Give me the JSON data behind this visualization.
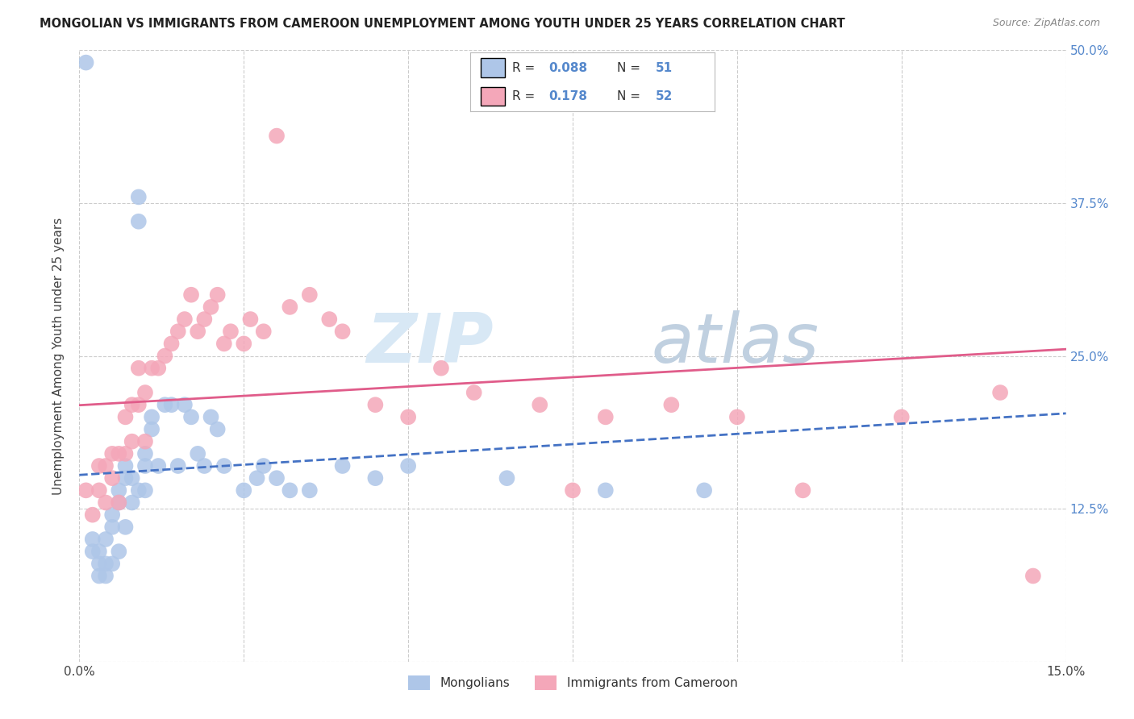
{
  "title": "MONGOLIAN VS IMMIGRANTS FROM CAMEROON UNEMPLOYMENT AMONG YOUTH UNDER 25 YEARS CORRELATION CHART",
  "source": "Source: ZipAtlas.com",
  "ylabel": "Unemployment Among Youth under 25 years",
  "legend_label1": "Mongolians",
  "legend_label2": "Immigrants from Cameroon",
  "R1": 0.088,
  "N1": 51,
  "R2": 0.178,
  "N2": 52,
  "color1": "#aec6e8",
  "color2": "#f4a7b9",
  "line1_color": "#4472c4",
  "line2_color": "#e05c8a",
  "xlim": [
    0.0,
    0.15
  ],
  "ylim": [
    0.0,
    0.5
  ],
  "xticks": [
    0.0,
    0.025,
    0.05,
    0.075,
    0.1,
    0.125,
    0.15
  ],
  "xtick_labels": [
    "0.0%",
    "",
    "",
    "",
    "",
    "",
    "15.0%"
  ],
  "yticks": [
    0.0,
    0.125,
    0.25,
    0.375,
    0.5
  ],
  "ytick_labels": [
    "",
    "12.5%",
    "25.0%",
    "37.5%",
    "50.0%"
  ],
  "mongolians_x": [
    0.001,
    0.002,
    0.002,
    0.003,
    0.003,
    0.003,
    0.004,
    0.004,
    0.004,
    0.005,
    0.005,
    0.005,
    0.006,
    0.006,
    0.006,
    0.007,
    0.007,
    0.007,
    0.008,
    0.008,
    0.009,
    0.009,
    0.009,
    0.01,
    0.01,
    0.01,
    0.011,
    0.011,
    0.012,
    0.013,
    0.014,
    0.015,
    0.016,
    0.017,
    0.018,
    0.019,
    0.02,
    0.021,
    0.022,
    0.025,
    0.027,
    0.028,
    0.03,
    0.032,
    0.035,
    0.04,
    0.045,
    0.05,
    0.065,
    0.08,
    0.095
  ],
  "mongolians_y": [
    0.49,
    0.1,
    0.09,
    0.08,
    0.09,
    0.07,
    0.08,
    0.1,
    0.07,
    0.12,
    0.11,
    0.08,
    0.14,
    0.13,
    0.09,
    0.16,
    0.15,
    0.11,
    0.15,
    0.13,
    0.38,
    0.36,
    0.14,
    0.17,
    0.16,
    0.14,
    0.2,
    0.19,
    0.16,
    0.21,
    0.21,
    0.16,
    0.21,
    0.2,
    0.17,
    0.16,
    0.2,
    0.19,
    0.16,
    0.14,
    0.15,
    0.16,
    0.15,
    0.14,
    0.14,
    0.16,
    0.15,
    0.16,
    0.15,
    0.14,
    0.14
  ],
  "cameroon_x": [
    0.001,
    0.002,
    0.003,
    0.003,
    0.004,
    0.004,
    0.005,
    0.005,
    0.006,
    0.006,
    0.007,
    0.007,
    0.008,
    0.008,
    0.009,
    0.009,
    0.01,
    0.01,
    0.011,
    0.012,
    0.013,
    0.014,
    0.015,
    0.016,
    0.017,
    0.018,
    0.019,
    0.02,
    0.021,
    0.022,
    0.023,
    0.025,
    0.026,
    0.028,
    0.03,
    0.032,
    0.035,
    0.038,
    0.04,
    0.045,
    0.05,
    0.055,
    0.06,
    0.07,
    0.075,
    0.08,
    0.09,
    0.1,
    0.11,
    0.125,
    0.14,
    0.145
  ],
  "cameroon_y": [
    0.14,
    0.12,
    0.16,
    0.14,
    0.16,
    0.13,
    0.17,
    0.15,
    0.17,
    0.13,
    0.2,
    0.17,
    0.21,
    0.18,
    0.24,
    0.21,
    0.22,
    0.18,
    0.24,
    0.24,
    0.25,
    0.26,
    0.27,
    0.28,
    0.3,
    0.27,
    0.28,
    0.29,
    0.3,
    0.26,
    0.27,
    0.26,
    0.28,
    0.27,
    0.43,
    0.29,
    0.3,
    0.28,
    0.27,
    0.21,
    0.2,
    0.24,
    0.22,
    0.21,
    0.14,
    0.2,
    0.21,
    0.2,
    0.14,
    0.2,
    0.22,
    0.07
  ],
  "watermark_zip": "ZIP",
  "watermark_atlas": "atlas",
  "watermark_color": "#d0dff0",
  "background_color": "#ffffff",
  "grid_color": "#cccccc"
}
